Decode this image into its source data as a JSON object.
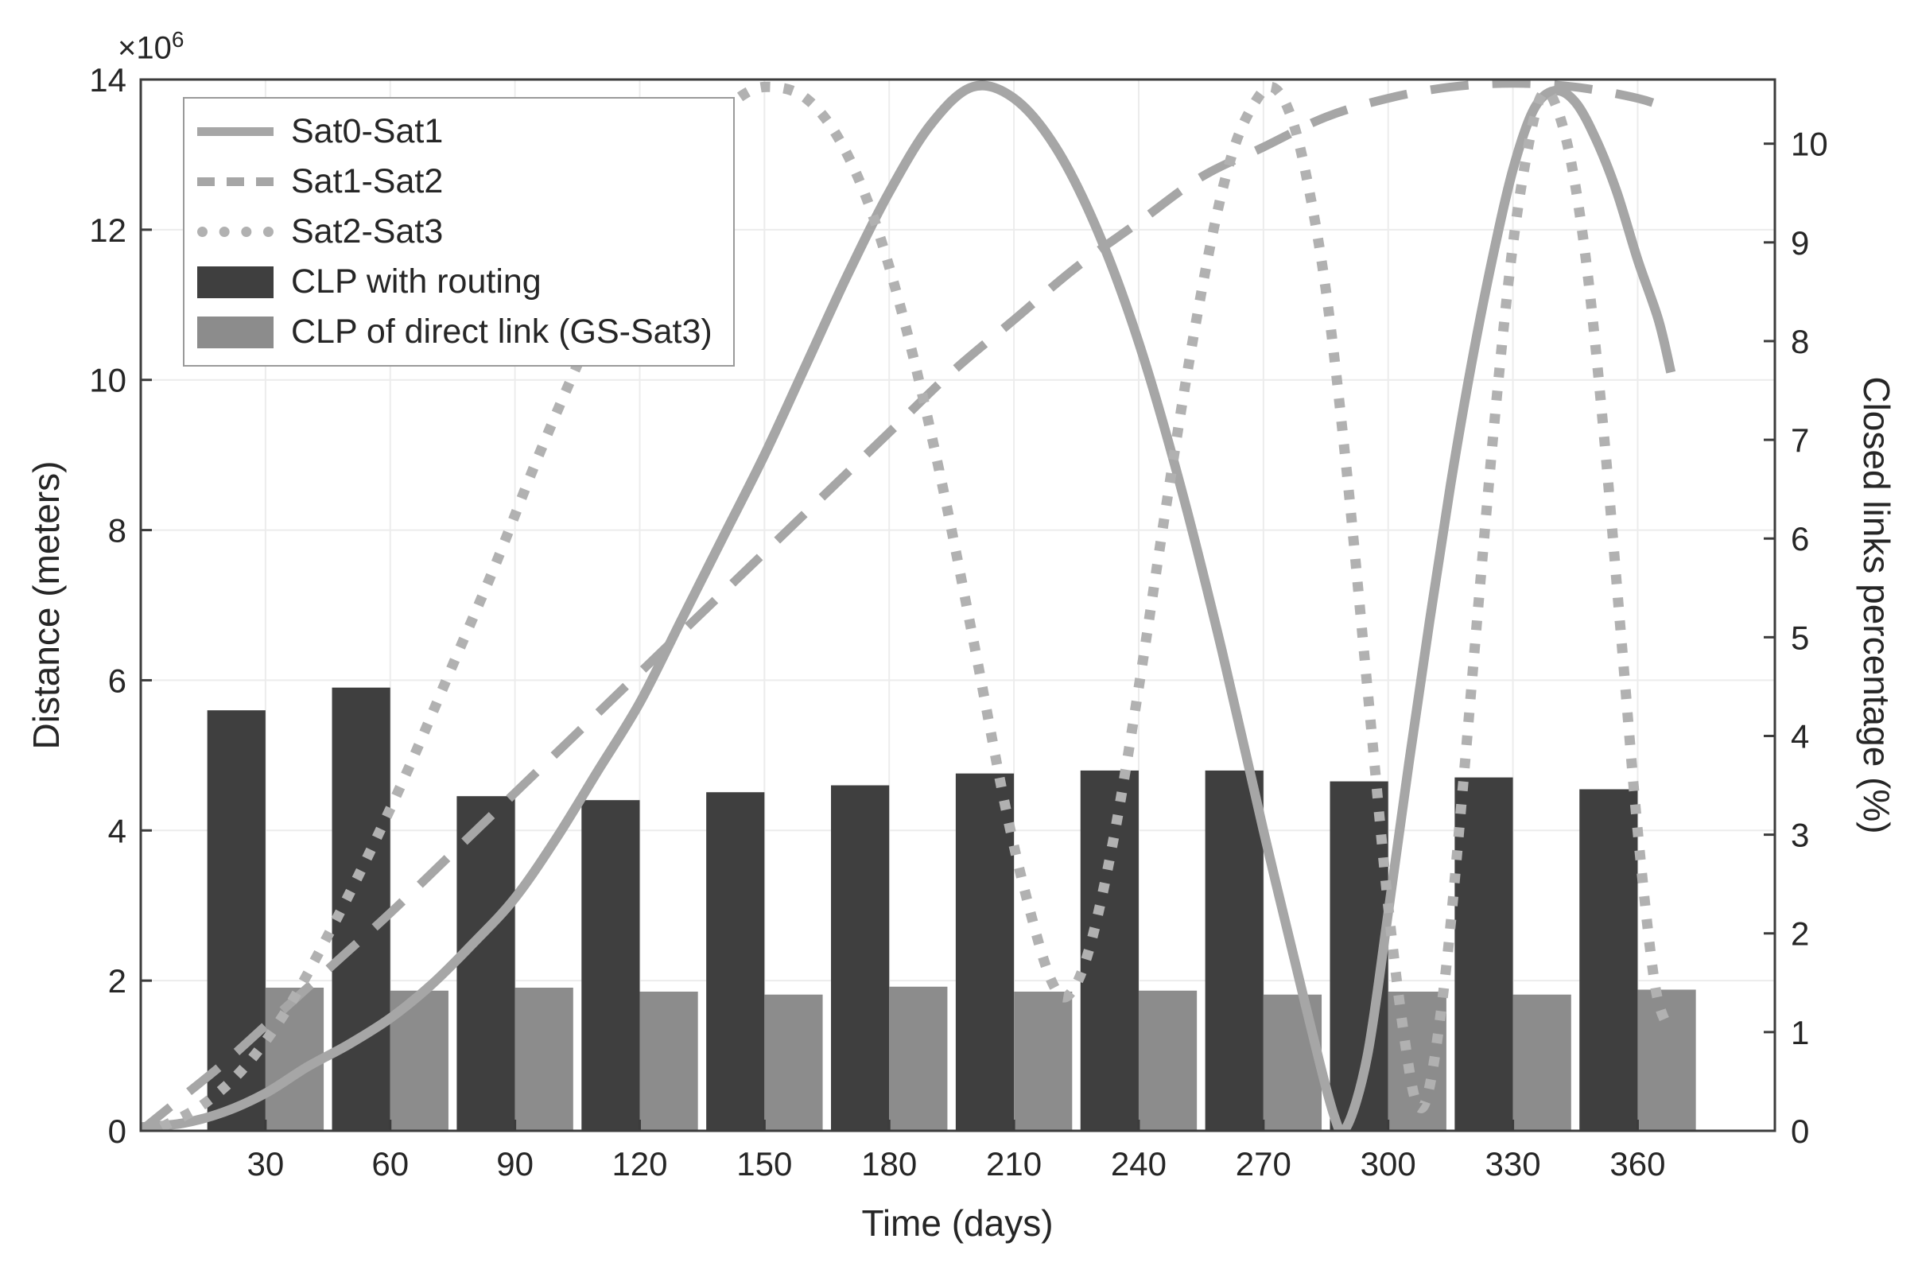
{
  "styles": {
    "background": "#ffffff",
    "axis_color": "#3c3c3c",
    "grid_color": "#ececec",
    "text_color": "#262626",
    "tick_font_size": 42
  },
  "chart_data": {
    "type": "combo-line-bar",
    "grid": true,
    "x_axis": {
      "label": "Time (days)",
      "range": [
        0,
        393
      ],
      "ticks": [
        30,
        60,
        90,
        120,
        150,
        180,
        210,
        240,
        270,
        300,
        330,
        360
      ]
    },
    "y_left": {
      "label": "Distance (meters)",
      "multiplier_base": "×10",
      "multiplier_exponent": "6",
      "unit_scale": "1e6",
      "range": [
        0,
        14
      ],
      "ticks": [
        0,
        2,
        4,
        6,
        8,
        10,
        12,
        14
      ]
    },
    "y_right": {
      "label": "Closed links percentage (%)",
      "range": [
        0,
        10.65
      ],
      "ticks": [
        0,
        1,
        2,
        3,
        4,
        5,
        6,
        7,
        8,
        9,
        10
      ]
    },
    "lines": [
      {
        "name": "Sat0-Sat1",
        "style": "solid",
        "color": "#a6a6a6",
        "width": 12,
        "axis": "left",
        "points": [
          [
            0,
            0.05
          ],
          [
            10,
            0.1
          ],
          [
            20,
            0.25
          ],
          [
            30,
            0.5
          ],
          [
            40,
            0.85
          ],
          [
            50,
            1.15
          ],
          [
            60,
            1.5
          ],
          [
            70,
            1.95
          ],
          [
            80,
            2.5
          ],
          [
            90,
            3.1
          ],
          [
            100,
            3.9
          ],
          [
            110,
            4.8
          ],
          [
            120,
            5.7
          ],
          [
            130,
            6.8
          ],
          [
            140,
            7.9
          ],
          [
            150,
            9.0
          ],
          [
            160,
            10.2
          ],
          [
            170,
            11.4
          ],
          [
            180,
            12.5
          ],
          [
            190,
            13.4
          ],
          [
            200,
            13.9
          ],
          [
            210,
            13.75
          ],
          [
            220,
            13.1
          ],
          [
            230,
            12.0
          ],
          [
            240,
            10.5
          ],
          [
            250,
            8.6
          ],
          [
            260,
            6.4
          ],
          [
            270,
            4.0
          ],
          [
            280,
            1.7
          ],
          [
            287,
            0.2
          ],
          [
            290,
            0.05
          ],
          [
            295,
            1.0
          ],
          [
            300,
            2.9
          ],
          [
            305,
            4.9
          ],
          [
            310,
            6.8
          ],
          [
            315,
            8.6
          ],
          [
            320,
            10.2
          ],
          [
            325,
            11.6
          ],
          [
            330,
            12.8
          ],
          [
            335,
            13.6
          ],
          [
            340,
            13.85
          ],
          [
            345,
            13.7
          ],
          [
            350,
            13.2
          ],
          [
            355,
            12.5
          ],
          [
            360,
            11.6
          ],
          [
            365,
            10.8
          ],
          [
            368,
            10.1
          ]
        ]
      },
      {
        "name": "Sat1-Sat2",
        "style": "dashed",
        "color": "#a6a6a6",
        "width": 11,
        "axis": "left",
        "points": [
          [
            0,
            0.0
          ],
          [
            10,
            0.45
          ],
          [
            20,
            0.9
          ],
          [
            30,
            1.4
          ],
          [
            40,
            1.9
          ],
          [
            50,
            2.4
          ],
          [
            60,
            2.9
          ],
          [
            75,
            3.7
          ],
          [
            90,
            4.5
          ],
          [
            105,
            5.3
          ],
          [
            120,
            6.1
          ],
          [
            135,
            6.9
          ],
          [
            150,
            7.7
          ],
          [
            165,
            8.5
          ],
          [
            180,
            9.3
          ],
          [
            195,
            10.1
          ],
          [
            210,
            10.8
          ],
          [
            225,
            11.5
          ],
          [
            240,
            12.1
          ],
          [
            255,
            12.7
          ],
          [
            270,
            13.1
          ],
          [
            285,
            13.5
          ],
          [
            300,
            13.75
          ],
          [
            315,
            13.9
          ],
          [
            330,
            13.95
          ],
          [
            345,
            13.9
          ],
          [
            360,
            13.75
          ],
          [
            368,
            13.6
          ]
        ]
      },
      {
        "name": "Sat2-Sat3",
        "style": "dotted",
        "color": "#b1b1b1",
        "width": 13,
        "axis": "left",
        "points": [
          [
            5,
            0.05
          ],
          [
            15,
            0.35
          ],
          [
            25,
            0.85
          ],
          [
            35,
            1.6
          ],
          [
            45,
            2.6
          ],
          [
            55,
            3.7
          ],
          [
            65,
            4.9
          ],
          [
            75,
            6.2
          ],
          [
            85,
            7.5
          ],
          [
            95,
            8.9
          ],
          [
            105,
            10.2
          ],
          [
            115,
            11.4
          ],
          [
            125,
            12.5
          ],
          [
            135,
            13.3
          ],
          [
            145,
            13.8
          ],
          [
            152,
            13.9
          ],
          [
            160,
            13.75
          ],
          [
            168,
            13.2
          ],
          [
            176,
            12.2
          ],
          [
            184,
            10.7
          ],
          [
            192,
            8.8
          ],
          [
            200,
            6.6
          ],
          [
            208,
            4.3
          ],
          [
            214,
            2.9
          ],
          [
            219,
            2.0
          ],
          [
            223,
            1.8
          ],
          [
            228,
            2.4
          ],
          [
            234,
            3.9
          ],
          [
            240,
            5.9
          ],
          [
            246,
            8.1
          ],
          [
            252,
            10.2
          ],
          [
            258,
            12.0
          ],
          [
            263,
            13.1
          ],
          [
            268,
            13.7
          ],
          [
            272,
            13.9
          ],
          [
            276,
            13.6
          ],
          [
            280,
            12.8
          ],
          [
            285,
            11.2
          ],
          [
            290,
            8.8
          ],
          [
            295,
            5.9
          ],
          [
            300,
            3.0
          ],
          [
            304,
            1.2
          ],
          [
            307,
            0.35
          ],
          [
            310,
            0.6
          ],
          [
            314,
            2.2
          ],
          [
            318,
            4.6
          ],
          [
            322,
            7.2
          ],
          [
            326,
            9.7
          ],
          [
            330,
            11.8
          ],
          [
            334,
            13.2
          ],
          [
            337,
            13.8
          ],
          [
            340,
            13.7
          ],
          [
            344,
            12.9
          ],
          [
            348,
            11.4
          ],
          [
            352,
            9.2
          ],
          [
            356,
            6.6
          ],
          [
            360,
            4.0
          ],
          [
            364,
            2.0
          ],
          [
            367,
            1.4
          ]
        ]
      }
    ],
    "bars": {
      "categories": [
        30,
        60,
        90,
        120,
        150,
        180,
        210,
        240,
        270,
        300,
        330,
        360
      ],
      "group_width_days": 28,
      "series": [
        {
          "name": "CLP with routing",
          "color": "#3f3f3f",
          "axis": "right",
          "values": [
            4.26,
            4.49,
            3.39,
            3.35,
            3.43,
            3.5,
            3.62,
            3.65,
            3.65,
            3.54,
            3.58,
            3.46
          ]
        },
        {
          "name": "CLP of direct link (GS-Sat3)",
          "color": "#8c8c8c",
          "axis": "right",
          "values": [
            1.45,
            1.42,
            1.45,
            1.41,
            1.38,
            1.46,
            1.41,
            1.42,
            1.38,
            1.41,
            1.38,
            1.43
          ]
        }
      ]
    },
    "legend": {
      "position": "top-left"
    }
  }
}
